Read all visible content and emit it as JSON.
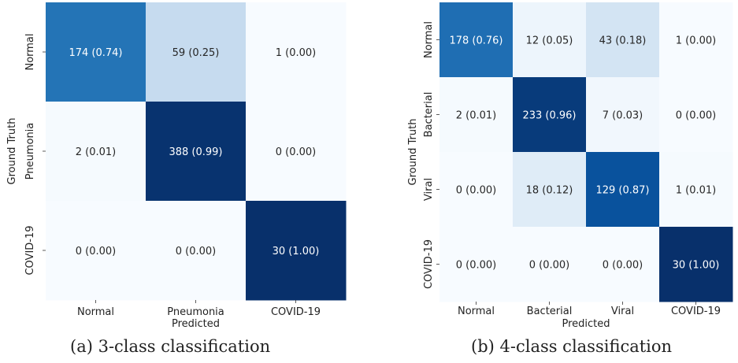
{
  "chart_data": [
    {
      "type": "heatmap",
      "caption": "(a) 3-class classification",
      "xlabel": "Predicted",
      "ylabel": "Ground Truth",
      "x_categories": [
        "Normal",
        "Pneumonia",
        "COVID-19"
      ],
      "y_categories": [
        "Normal",
        "Pneumonia",
        "COVID-19"
      ],
      "counts": [
        [
          174,
          59,
          1
        ],
        [
          2,
          388,
          0
        ],
        [
          0,
          0,
          30
        ]
      ],
      "ratios": [
        [
          0.74,
          0.25,
          0.0
        ],
        [
          0.01,
          0.99,
          0.0
        ],
        [
          0.0,
          0.0,
          1.0
        ]
      ],
      "labels": [
        [
          "174 (0.74)",
          "59 (0.25)",
          "1 (0.00)"
        ],
        [
          "2 (0.01)",
          "388 (0.99)",
          "0 (0.00)"
        ],
        [
          "0 (0.00)",
          "0 (0.00)",
          "30 (1.00)"
        ]
      ],
      "colormap": "Blues",
      "color_scale": [
        0,
        1
      ]
    },
    {
      "type": "heatmap",
      "caption": "(b) 4-class classification",
      "xlabel": "Predicted",
      "ylabel": "Ground Truth",
      "x_categories": [
        "Normal",
        "Bacterial",
        "Viral",
        "COVID-19"
      ],
      "y_categories": [
        "Normal",
        "Bacterial",
        "Viral",
        "COVID-19"
      ],
      "counts": [
        [
          178,
          12,
          43,
          1
        ],
        [
          2,
          233,
          7,
          0
        ],
        [
          0,
          18,
          129,
          1
        ],
        [
          0,
          0,
          0,
          30
        ]
      ],
      "ratios": [
        [
          0.76,
          0.05,
          0.18,
          0.0
        ],
        [
          0.01,
          0.96,
          0.03,
          0.0
        ],
        [
          0.0,
          0.12,
          0.87,
          0.01
        ],
        [
          0.0,
          0.0,
          0.0,
          1.0
        ]
      ],
      "labels": [
        [
          "178 (0.76)",
          "12 (0.05)",
          "43 (0.18)",
          "1 (0.00)"
        ],
        [
          "2 (0.01)",
          "233 (0.96)",
          "7 (0.03)",
          "0 (0.00)"
        ],
        [
          "0 (0.00)",
          "18 (0.12)",
          "129 (0.87)",
          "1 (0.01)"
        ],
        [
          "0 (0.00)",
          "0 (0.00)",
          "0 (0.00)",
          "30 (1.00)"
        ]
      ],
      "colormap": "Blues",
      "color_scale": [
        0,
        1
      ]
    }
  ]
}
